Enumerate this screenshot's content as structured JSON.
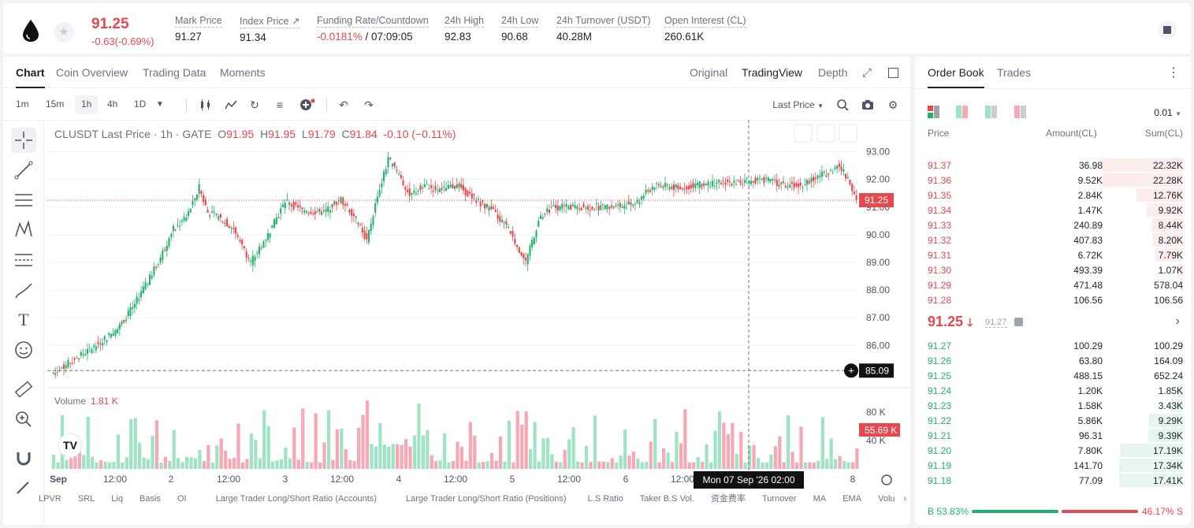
{
  "header": {
    "price": "91.25",
    "change": "-0.63(-0.69%)",
    "stats": [
      {
        "label": "Mark Price",
        "value": "91.27"
      },
      {
        "label": "Index Price ↗",
        "value": "91.34"
      },
      {
        "label": "Funding Rate/Countdown",
        "value_neg": "-0.0181%",
        "value": " / 07:09:05"
      },
      {
        "label": "24h High",
        "value": "92.83"
      },
      {
        "label": "24h Low",
        "value": "90.68"
      },
      {
        "label": "24h Turnover (USDT)",
        "value": "40.28M"
      },
      {
        "label": "Open Interest (CL)",
        "value": "260.61K"
      }
    ]
  },
  "tabs": {
    "left": [
      "Chart",
      "Coin Overview",
      "Trading Data",
      "Moments"
    ],
    "right": [
      "Original",
      "TradingView",
      "Depth"
    ]
  },
  "intervals": [
    "1m",
    "15m",
    "1h",
    "4h",
    "1D"
  ],
  "price_source": "Last Price",
  "legend": {
    "symbol": "CLUSDT Last Price · 1h · GATE",
    "o": "91.95",
    "h": "91.95",
    "l": "91.79",
    "c": "91.84",
    "chg": "-0.10 (−0.11%)"
  },
  "volume_legend": {
    "label": "Volume",
    "value": "1.81 K"
  },
  "price_tags": {
    "last": "91.25",
    "cross": "85.09",
    "vol": "55.69 K"
  },
  "crosshair_time": "Mon 07 Sep '26   02:00",
  "indicators": [
    "LPVR",
    "SRL",
    "Liq",
    "Basis",
    "OI",
    "Large Trader Long/Short Ratio (Accounts)",
    "Large Trader Long/Short Ratio (Positions)",
    "L.S Ratio",
    "Taker B.S Vol.",
    "资金费率",
    "Turnover",
    "MA",
    "EMA",
    "Volu"
  ],
  "chart_data": {
    "type": "candlestick",
    "y_ticks": [
      "93.00",
      "92.00",
      "91.00",
      "90.00",
      "89.00",
      "88.00",
      "87.00",
      "86.00"
    ],
    "volume_ticks": [
      "80 K",
      "40 K"
    ],
    "x_ticks": [
      "Sep",
      "12:00",
      "2",
      "12:00",
      "3",
      "12:00",
      "4",
      "12:00",
      "5",
      "12:00",
      "6",
      "12:00",
      "7",
      "8"
    ],
    "ylim": [
      84.7,
      93.3
    ]
  },
  "orderbook": {
    "tabs": [
      "Order Book",
      "Trades"
    ],
    "precision": "0.01",
    "headers": [
      "Price",
      "Amount(CL)",
      "Sum(CL)"
    ],
    "asks": [
      [
        "91.37",
        "36.98",
        "22.32K",
        0.99
      ],
      [
        "91.36",
        "9.52K",
        "22.28K",
        0.98
      ],
      [
        "91.35",
        "2.84K",
        "12.76K",
        0.57
      ],
      [
        "91.34",
        "1.47K",
        "9.92K",
        0.44
      ],
      [
        "91.33",
        "240.89",
        "8.44K",
        0.38
      ],
      [
        "91.32",
        "407.83",
        "8.20K",
        0.37
      ],
      [
        "91.31",
        "6.72K",
        "7.79K",
        0.35
      ],
      [
        "91.30",
        "493.39",
        "1.07K",
        0.05
      ],
      [
        "91.29",
        "471.48",
        "578.04",
        0.03
      ],
      [
        "91.28",
        "106.56",
        "106.56",
        0.01
      ]
    ],
    "mid_price": "91.25",
    "mid_mark": "91.27",
    "bids": [
      [
        "91.27",
        "100.29",
        "100.29",
        0.01
      ],
      [
        "91.26",
        "63.80",
        "164.09",
        0.01
      ],
      [
        "91.25",
        "488.15",
        "652.24",
        0.03
      ],
      [
        "91.24",
        "1.20K",
        "1.85K",
        0.08
      ],
      [
        "91.23",
        "1.58K",
        "3.43K",
        0.15
      ],
      [
        "91.22",
        "5.86K",
        "9.29K",
        0.41
      ],
      [
        "91.21",
        "96.31",
        "9.39K",
        0.42
      ],
      [
        "91.20",
        "7.80K",
        "17.19K",
        0.77
      ],
      [
        "91.19",
        "141.70",
        "17.34K",
        0.78
      ],
      [
        "91.18",
        "77.09",
        "17.41K",
        0.78
      ]
    ],
    "buy_ratio": "B 53.83%",
    "sell_ratio": "46.17% S"
  },
  "colors": {
    "up": "#20b26c",
    "down": "#e5484d",
    "vol_up": "#9fe3c4",
    "vol_down": "#f6a9b4"
  }
}
